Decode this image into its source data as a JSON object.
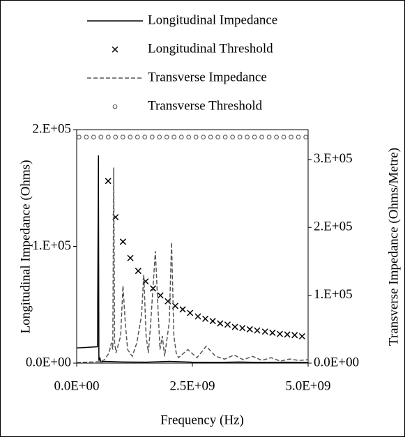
{
  "chart_data": {
    "type": "line",
    "xlabel": "Frequency (Hz)",
    "ylabel": "Longitudinal Impedance (Ohms)",
    "y2label": "Transverse Impedance (Ohms/Metre)",
    "xlim": [
      0,
      5000000000.0
    ],
    "xticks": [
      {
        "value": 0,
        "label": "0.0E+00"
      },
      {
        "value": 2500000000.0,
        "label": "2.5E+09"
      },
      {
        "value": 5000000000.0,
        "label": "5.0E+09"
      }
    ],
    "ylim": [
      0,
      200000.0
    ],
    "yticks": [
      {
        "value": 0,
        "label": "0.0E+00"
      },
      {
        "value": 100000.0,
        "label": "1.E+05"
      },
      {
        "value": 200000.0,
        "label": "2.E+05"
      }
    ],
    "y2lim": [
      0,
      344000.0
    ],
    "y2ticks": [
      {
        "value": 0,
        "label": "0.0E+00"
      },
      {
        "value": 100000.0,
        "label": "1.E+05"
      },
      {
        "value": 200000.0,
        "label": "2.E+05"
      },
      {
        "value": 300000.0,
        "label": "3.E+05"
      }
    ],
    "series": [
      {
        "name": "Longitudinal Impedance",
        "color": "#000000",
        "style": "line",
        "axis": "y",
        "x": [
          0,
          450000000.0,
          470000000.0,
          480000000.0,
          500000000.0,
          520000000.0,
          600000000.0,
          1000000000.0,
          1500000000.0,
          2000000000.0,
          2500000000.0,
          3000000000.0,
          3500000000.0,
          4000000000.0,
          4500000000.0,
          5000000000.0
        ],
        "values": [
          13000,
          14000,
          178000,
          2000,
          5000,
          1000,
          1500,
          1000,
          800,
          1500,
          800,
          600,
          1000,
          600,
          800,
          500
        ]
      },
      {
        "name": "Longitudinal Threshold",
        "color": "#000000",
        "style": "x",
        "axis": "y",
        "x": [
          680000000.0,
          840000000.0,
          1000000000.0,
          1160000000.0,
          1330000000.0,
          1490000000.0,
          1650000000.0,
          1810000000.0,
          1970000000.0,
          2130000000.0,
          2290000000.0,
          2450000000.0,
          2620000000.0,
          2780000000.0,
          2940000000.0,
          3100000000.0,
          3260000000.0,
          3420000000.0,
          3580000000.0,
          3740000000.0,
          3900000000.0,
          4070000000.0,
          4230000000.0,
          4390000000.0,
          4550000000.0,
          4710000000.0,
          4870000000.0
        ],
        "values": [
          156000,
          125000,
          104000,
          90000,
          79000,
          70000,
          64000,
          58000,
          53000,
          49000,
          46000,
          43000,
          40000,
          38000,
          36000,
          34000,
          33000,
          31000,
          30000,
          29000,
          28000,
          27000,
          26000,
          25000,
          24500,
          24000,
          23000
        ]
      },
      {
        "name": "Transverse Impedance",
        "color": "#555555",
        "style": "dashed",
        "axis": "y2",
        "x": [
          0,
          500000000.0,
          600000000.0,
          700000000.0,
          750000000.0,
          780000000.0,
          800000000.0,
          820000000.0,
          850000000.0,
          950000000.0,
          1000000000.0,
          1050000000.0,
          1100000000.0,
          1200000000.0,
          1300000000.0,
          1400000000.0,
          1450000000.0,
          1500000000.0,
          1550000000.0,
          1600000000.0,
          1700000000.0,
          1750000000.0,
          1800000000.0,
          1850000000.0,
          1900000000.0,
          2000000000.0,
          2050000000.0,
          2100000000.0,
          2150000000.0,
          2200000000.0,
          2400000000.0,
          2600000000.0,
          2800000000.0,
          3000000000.0,
          3200000000.0,
          3400000000.0,
          3600000000.0,
          3800000000.0,
          4000000000.0,
          4200000000.0,
          4400000000.0,
          4600000000.0,
          4800000000.0,
          5000000000.0
        ],
        "values": [
          1000,
          2000,
          5000,
          15000,
          30000,
          20000,
          288000,
          30000,
          15000,
          40000,
          114000,
          60000,
          20000,
          10000,
          30000,
          70000,
          130000,
          40000,
          15000,
          60000,
          165000,
          90000,
          20000,
          40000,
          10000,
          60000,
          178000,
          40000,
          15000,
          8000,
          20000,
          8000,
          25000,
          10000,
          6000,
          12000,
          5000,
          10000,
          4000,
          8000,
          3000,
          6000,
          4000,
          5000
        ]
      },
      {
        "name": "Transverse Threshold",
        "color": "#666666",
        "style": "circle",
        "axis": "y2",
        "x": [
          50000000.0,
          208000000.0,
          366000000.0,
          524000000.0,
          682000000.0,
          840000000.0,
          998000000.0,
          1156000000.0,
          1314000000.0,
          1472000000.0,
          1630000000.0,
          1788000000.0,
          1946000000.0,
          2104000000.0,
          2262000000.0,
          2420000000.0,
          2578000000.0,
          2736000000.0,
          2894000000.0,
          3052000000.0,
          3210000000.0,
          3368000000.0,
          3526000000.0,
          3684000000.0,
          3842000000.0,
          4000000000.0,
          4158000000.0,
          4316000000.0,
          4474000000.0,
          4632000000.0,
          4790000000.0,
          4950000000.0
        ],
        "values": [
          333000,
          333000,
          333000,
          333000,
          333000,
          333000,
          333000,
          333000,
          333000,
          333000,
          333000,
          333000,
          333000,
          333000,
          333000,
          333000,
          333000,
          333000,
          333000,
          333000,
          333000,
          333000,
          333000,
          333000,
          333000,
          333000,
          333000,
          333000,
          333000,
          333000,
          333000,
          333000
        ]
      }
    ]
  }
}
